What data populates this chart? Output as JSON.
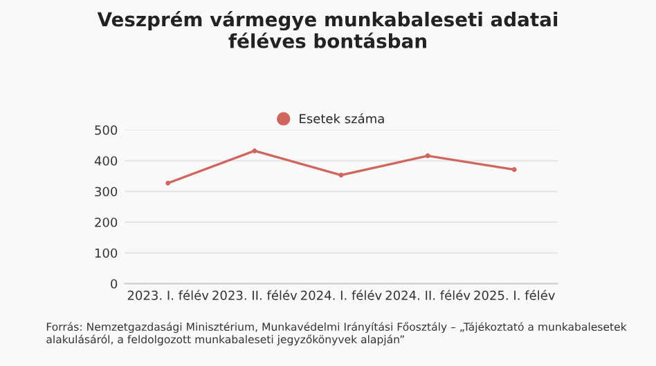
{
  "chart_data": {
    "type": "line",
    "title": "Veszprém vármegye munkabaleseti adatai\nféléves bontásban",
    "categories": [
      "2023. I. félév",
      "2023. II. félév",
      "2024. I. félév",
      "2024. II. félév",
      "2025. I. félév"
    ],
    "series": [
      {
        "name": "Esetek száma",
        "color": "#d0675f",
        "values": [
          327,
          432,
          353,
          416,
          371
        ]
      }
    ],
    "ylim": [
      0,
      500
    ],
    "yticks": [
      0,
      100,
      200,
      300,
      400,
      500
    ],
    "grid": "y",
    "legend": "top",
    "marker": "circle",
    "line_style": "solid",
    "annotations": [
      "Forrás: Nemzetgazdasági Minisztérium, Munkavédelmi Irányítási Főosztály – „Tájékoztató a munkabalesetek alakulásáról, a feldolgozott munkabaleseti jegyzőkönyvek alapján”"
    ]
  }
}
